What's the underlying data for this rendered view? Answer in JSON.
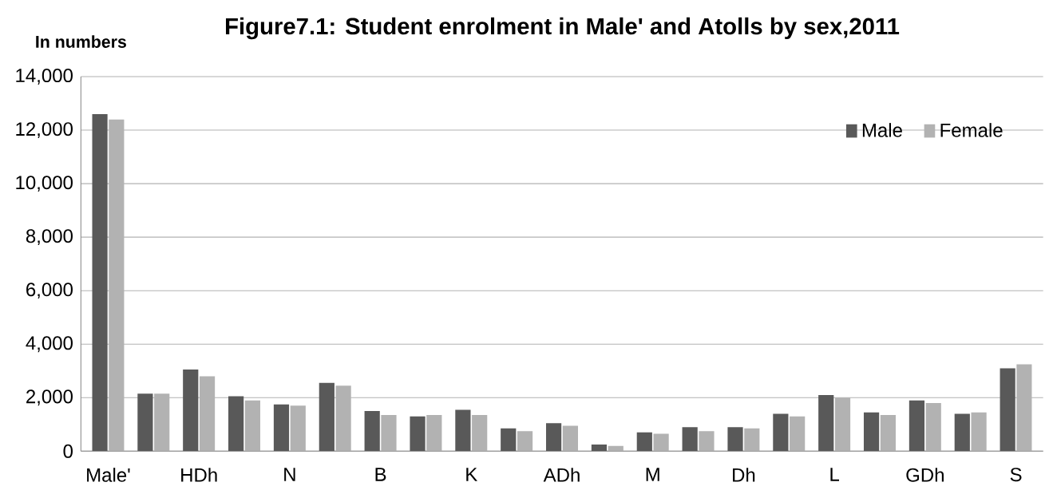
{
  "chart_data": {
    "type": "bar",
    "title": "Figure7.1: Student enrolment in Male' and Atolls by sex,2011",
    "ylabel": "In numbers",
    "categories": [
      "Male'",
      null,
      "HDh",
      null,
      "N",
      null,
      "B",
      null,
      "K",
      null,
      "ADh",
      null,
      "M",
      null,
      "Dh",
      null,
      "L",
      null,
      "GDh",
      null,
      "S"
    ],
    "series": [
      {
        "name": "Male",
        "color": "#595959",
        "values": [
          12600,
          2150,
          3050,
          2050,
          1750,
          2550,
          1500,
          1300,
          1550,
          850,
          1050,
          250,
          700,
          900,
          900,
          1400,
          2100,
          1450,
          1900,
          1400,
          3100
        ]
      },
      {
        "name": "Female",
        "color": "#b2b2b2",
        "values": [
          12400,
          2150,
          2800,
          1900,
          1700,
          2450,
          1350,
          1350,
          1350,
          750,
          950,
          200,
          650,
          750,
          850,
          1300,
          2000,
          1350,
          1800,
          1450,
          3250
        ]
      }
    ],
    "ylim": [
      0,
      14000
    ],
    "yticks": [
      {
        "value": 0,
        "label": "0"
      },
      {
        "value": 2000,
        "label": "2,000"
      },
      {
        "value": 4000,
        "label": "4,000"
      },
      {
        "value": 6000,
        "label": "6,000"
      },
      {
        "value": 8000,
        "label": "8,000"
      },
      {
        "value": 10000,
        "label": "10,000"
      },
      {
        "value": 12000,
        "label": "12,000"
      },
      {
        "value": 14000,
        "label": "14,000"
      }
    ],
    "grid": "y",
    "legend": "top right"
  }
}
